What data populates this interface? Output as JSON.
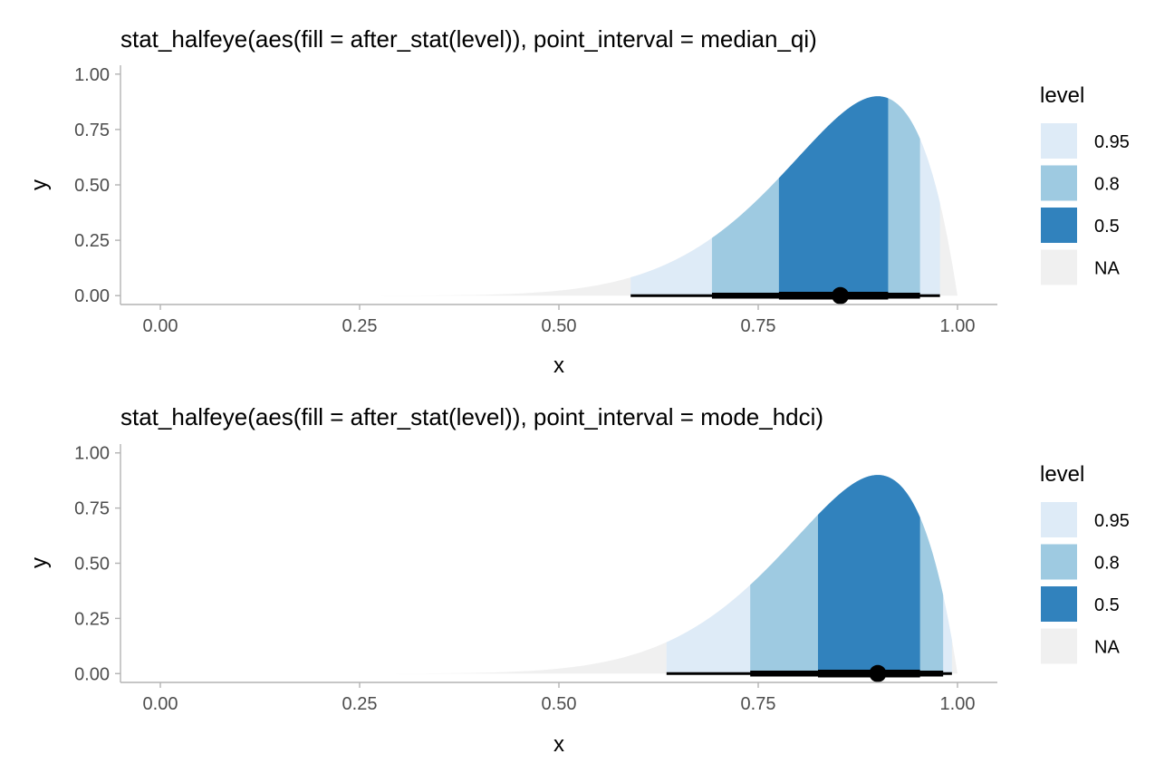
{
  "chart_data": [
    {
      "type": "halfeye",
      "title": "stat_halfeye(aes(fill = after_stat(level)), point_interval = median_qi)",
      "xlabel": "x",
      "ylabel": "y",
      "xlim": [
        -0.05,
        1.05
      ],
      "ylim": [
        -0.04,
        1.04
      ],
      "x_ticks": [
        0,
        0.25,
        0.5,
        0.75,
        1
      ],
      "x_tick_labels": [
        "0.00",
        "0.25",
        "0.50",
        "0.75",
        "1.00"
      ],
      "y_ticks": [
        0,
        0.25,
        0.5,
        0.75,
        1
      ],
      "y_tick_labels": [
        "0.00",
        "0.25",
        "0.50",
        "0.75",
        "1.00"
      ],
      "grid": false,
      "density": {
        "family": "beta",
        "alpha": 10,
        "beta": 2,
        "x_range": [
          0,
          1
        ],
        "y_peak": 0.9
      },
      "point": {
        "label": "median",
        "x": 0.853
      },
      "bands": [
        {
          "level": "0.95",
          "from": 0.59,
          "to": 0.978
        },
        {
          "level": "0.8",
          "from": 0.692,
          "to": 0.953
        },
        {
          "level": "0.5",
          "from": 0.776,
          "to": 0.913
        }
      ],
      "legend": {
        "title": "level",
        "position": "right",
        "entries": [
          {
            "label": "0.95",
            "color": "#deebf7"
          },
          {
            "label": "0.8",
            "color": "#9ecae1"
          },
          {
            "label": "0.5",
            "color": "#3182bd"
          },
          {
            "label": "NA",
            "color": "#f0f0f0"
          }
        ]
      }
    },
    {
      "type": "halfeye",
      "title": "stat_halfeye(aes(fill = after_stat(level)), point_interval = mode_hdci)",
      "xlabel": "x",
      "ylabel": "y",
      "xlim": [
        -0.05,
        1.05
      ],
      "ylim": [
        -0.04,
        1.04
      ],
      "x_ticks": [
        0,
        0.25,
        0.5,
        0.75,
        1
      ],
      "x_tick_labels": [
        "0.00",
        "0.25",
        "0.50",
        "0.75",
        "1.00"
      ],
      "y_ticks": [
        0,
        0.25,
        0.5,
        0.75,
        1
      ],
      "y_tick_labels": [
        "0.00",
        "0.25",
        "0.50",
        "0.75",
        "1.00"
      ],
      "grid": false,
      "density": {
        "family": "beta",
        "alpha": 10,
        "beta": 2,
        "x_range": [
          0,
          1
        ],
        "y_peak": 0.9
      },
      "point": {
        "label": "mode",
        "x": 0.9
      },
      "bands": [
        {
          "level": "0.95",
          "from": 0.635,
          "to": 0.993
        },
        {
          "level": "0.8",
          "from": 0.74,
          "to": 0.982
        },
        {
          "level": "0.5",
          "from": 0.825,
          "to": 0.953
        }
      ],
      "legend": {
        "title": "level",
        "position": "right",
        "entries": [
          {
            "label": "0.95",
            "color": "#deebf7"
          },
          {
            "label": "0.8",
            "color": "#9ecae1"
          },
          {
            "label": "0.5",
            "color": "#3182bd"
          },
          {
            "label": "NA",
            "color": "#f0f0f0"
          }
        ]
      }
    }
  ],
  "colors": {
    "na_fill": "#f0f0f0",
    "interval_line": "#000000",
    "axis_line": "#b3b3b3",
    "tick_text": "#4d4d4d"
  }
}
